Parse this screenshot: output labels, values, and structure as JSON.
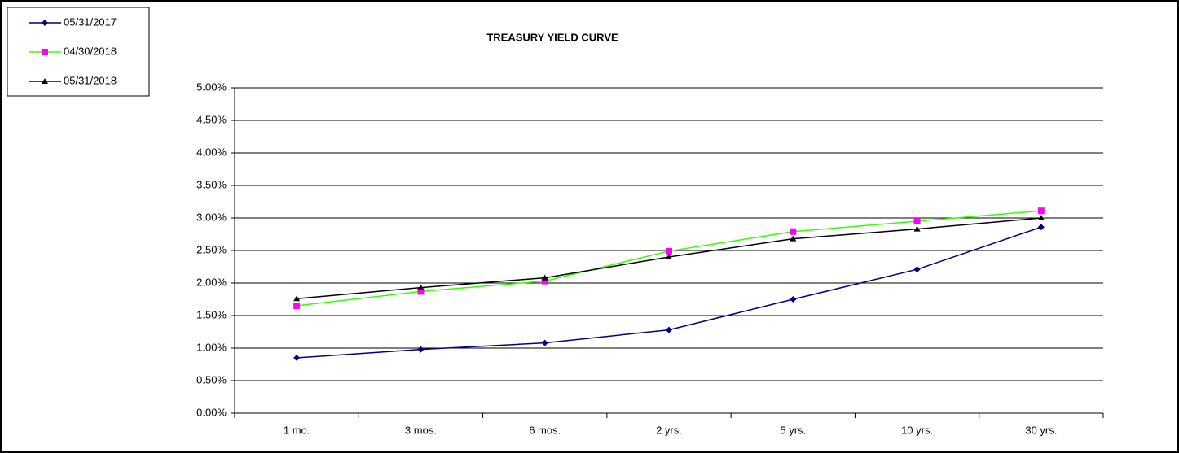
{
  "chart_data": {
    "type": "line",
    "title": "TREASURY YIELD CURVE",
    "categories": [
      "1 mo.",
      "3 mos.",
      "6 mos.",
      "2 yrs.",
      "5 yrs.",
      "10 yrs.",
      "30 yrs."
    ],
    "series": [
      {
        "name": "05/31/2017",
        "color": "#000080",
        "marker_color": "#000080",
        "marker": "diamond",
        "values": [
          0.85,
          0.98,
          1.08,
          1.28,
          1.75,
          2.21,
          2.86
        ]
      },
      {
        "name": "04/30/2018",
        "color": "#33ff00",
        "marker_color": "#ff00ff",
        "marker": "square",
        "values": [
          1.65,
          1.87,
          2.03,
          2.49,
          2.79,
          2.95,
          3.11
        ]
      },
      {
        "name": "05/31/2018",
        "color": "#000000",
        "marker_color": "#000000",
        "marker": "triangle",
        "values": [
          1.76,
          1.93,
          2.08,
          2.4,
          2.68,
          2.83,
          3.0
        ]
      }
    ],
    "ylim": [
      0,
      5
    ],
    "yticks": [
      {
        "value": 0,
        "label": "0.00%"
      },
      {
        "value": 0.5,
        "label": "0.50%"
      },
      {
        "value": 1,
        "label": "1.00%"
      },
      {
        "value": 1.5,
        "label": "1.50%"
      },
      {
        "value": 2,
        "label": "2.00%"
      },
      {
        "value": 2.5,
        "label": "2.50%"
      },
      {
        "value": 3,
        "label": "3.00%"
      },
      {
        "value": 3.5,
        "label": "3.50%"
      },
      {
        "value": 4,
        "label": "4.00%"
      },
      {
        "value": 4.5,
        "label": "4.50%"
      },
      {
        "value": 5,
        "label": "5.00%"
      }
    ],
    "grid": true,
    "legend": "top-left"
  }
}
